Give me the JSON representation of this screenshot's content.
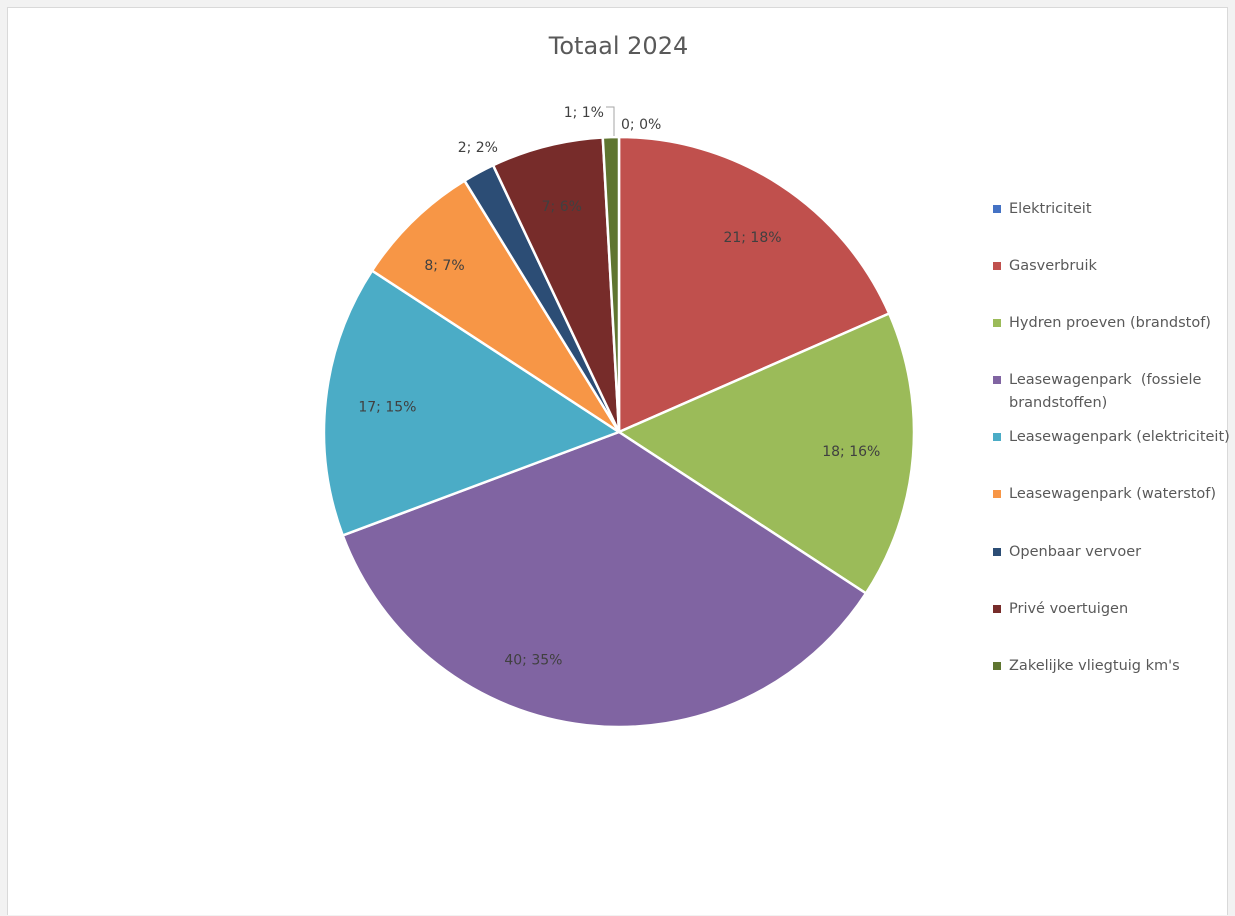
{
  "chart_data": {
    "type": "pie",
    "title": "Totaal 2024",
    "legend_position": "right",
    "slices": [
      {
        "name": "Elektriciteit",
        "value": 0,
        "percent": 0,
        "label": "",
        "color": "#4472c4"
      },
      {
        "name": "Gasverbruik",
        "value": 21,
        "percent": 18,
        "label": "21; 18%",
        "color": "#c0504d"
      },
      {
        "name": "Hydren proeven (brandstof)",
        "value": 18,
        "percent": 16,
        "label": "18; 16%",
        "color": "#9bbb59"
      },
      {
        "name": "Leasewagenpark  (fossiele brandstoffen)",
        "value": 40,
        "percent": 35,
        "label": "40; 35%",
        "color": "#8064a2"
      },
      {
        "name": "Leasewagenpark (elektriciteit)",
        "value": 17,
        "percent": 15,
        "label": "17; 15%",
        "color": "#4bacc6"
      },
      {
        "name": "Leasewagenpark (waterstof)",
        "value": 8,
        "percent": 7,
        "label": "8; 7%",
        "color": "#f79646"
      },
      {
        "name": "Openbaar vervoer",
        "value": 2,
        "percent": 2,
        "label": "2; 2%",
        "color": "#2c4d75"
      },
      {
        "name": "Privé voertuigen",
        "value": 7,
        "percent": 6,
        "label": "7; 6%",
        "color": "#772c2a"
      },
      {
        "name": "Zakelijke vliegtuig km's",
        "value": 1,
        "percent": 1,
        "label": "1; 1%",
        "color": "#5f7530"
      }
    ],
    "extra_labels": [
      "0; 0%"
    ]
  }
}
